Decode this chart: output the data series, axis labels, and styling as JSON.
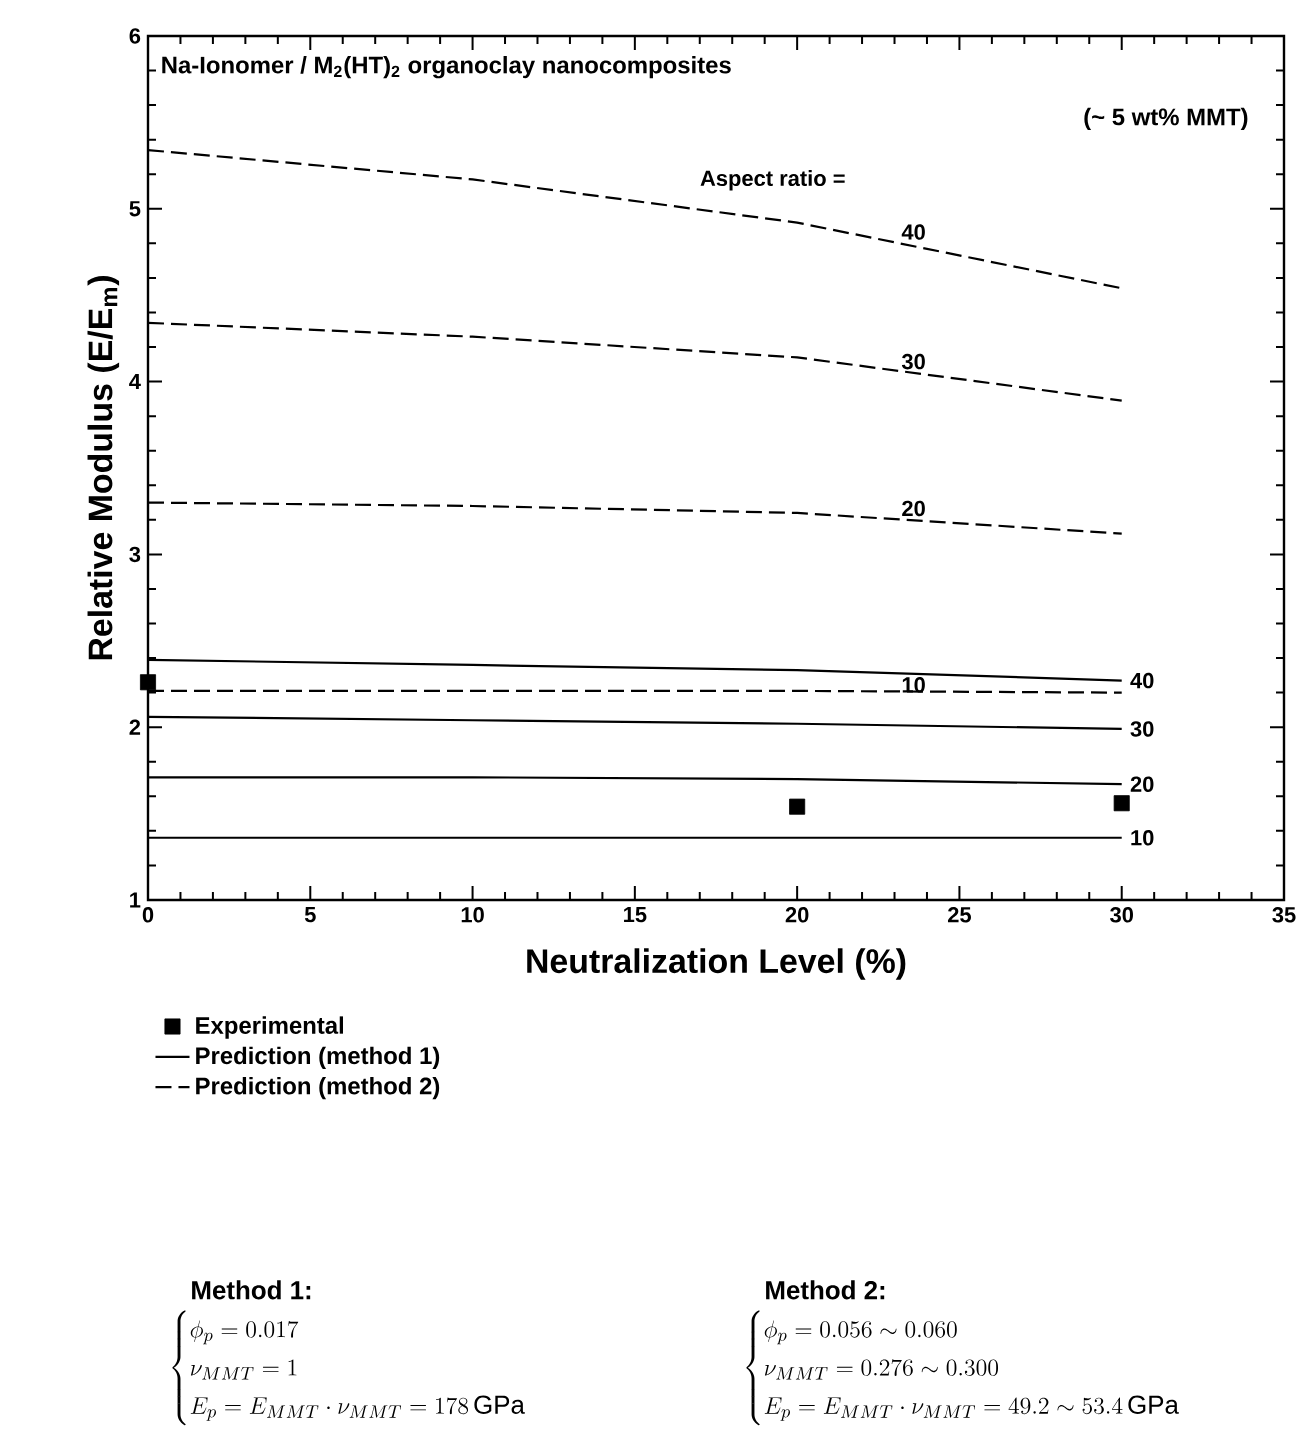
{
  "chart_data": {
    "type": "line",
    "title": "Na-Ionomer / M$_{2}$(HT)$_{2}$ organoclay nanocomposites",
    "subtitle": "(~ 5 wt% MMT)",
    "xlabel": "Neutralization Level (%)",
    "ylabel": "Relative Modulus (E/E$_{m}$)",
    "xlim": [
      0,
      35
    ],
    "ylim": [
      1,
      6
    ],
    "xticks": [
      0,
      5,
      10,
      15,
      20,
      25,
      30,
      35
    ],
    "yticks": [
      1,
      2,
      3,
      4,
      5,
      6
    ],
    "legend": "bottom",
    "series": [
      {
        "type": "scatter",
        "name": "Experimental",
        "color": "#000000",
        "marker": "square",
        "x": [
          0,
          20,
          30
        ],
        "values": [
          2.26,
          1.54,
          1.56
        ]
      },
      {
        "name": "Prediction (method 1)",
        "color": "#000000",
        "line_style": "solid",
        "x": [
          0,
          10,
          20,
          30
        ],
        "values": [
          2.39,
          2.36,
          2.33,
          2.27
        ]
      },
      {
        "color": "#000000",
        "line_style": "solid",
        "x": [
          0,
          10,
          20,
          30
        ],
        "values": [
          2.06,
          2.04,
          2.02,
          1.99
        ]
      },
      {
        "color": "#000000",
        "line_style": "solid",
        "x": [
          0,
          10,
          20,
          30
        ],
        "values": [
          1.71,
          1.71,
          1.7,
          1.67
        ]
      },
      {
        "color": "#000000",
        "line_style": "solid",
        "x": [
          0,
          10,
          20,
          30
        ],
        "values": [
          1.36,
          1.36,
          1.36,
          1.36
        ]
      },
      {
        "name": "Prediction (method 2)",
        "color": "#000000",
        "line_style": "dashed",
        "x": [
          0,
          10,
          20,
          30
        ],
        "values": [
          5.34,
          5.17,
          4.92,
          4.54
        ]
      },
      {
        "color": "#000000",
        "line_style": "dashed",
        "x": [
          0,
          10,
          20,
          30
        ],
        "values": [
          4.34,
          4.26,
          4.14,
          3.89
        ]
      },
      {
        "color": "#000000",
        "line_style": "dashed",
        "x": [
          0,
          10,
          20,
          30
        ],
        "values": [
          3.3,
          3.28,
          3.24,
          3.12
        ]
      },
      {
        "color": "#000000",
        "line_style": "dashed",
        "x": [
          0,
          10,
          20,
          30
        ],
        "values": [
          2.21,
          2.21,
          2.21,
          2.2
        ]
      }
    ],
    "annotations": [
      "Aspect ratio =",
      "40",
      "30",
      "20",
      "10",
      "40",
      "30",
      "20",
      "10",
      "Method 1:",
      "\\begin{cases}\\phi_p = 0.017\\\\ \\nu_{MMT} = 1\\\\ E_p = E_{MMT}\\cdot \\nu_{MMT} = 178\\,\\mathrm{GPa}\\end{cases}",
      "Method 2:",
      "\\begin{cases}\\phi_p = 0.056 \\sim 0.060\\\\ \\nu_{MMT} = 0.276 \\sim 0.300\\\\ E_p = E_{MMT}\\cdot \\nu_{MMT} = 49.2 \\sim 53.4\\,\\mathrm{GPa}\\end{cases}"
    ]
  }
}
